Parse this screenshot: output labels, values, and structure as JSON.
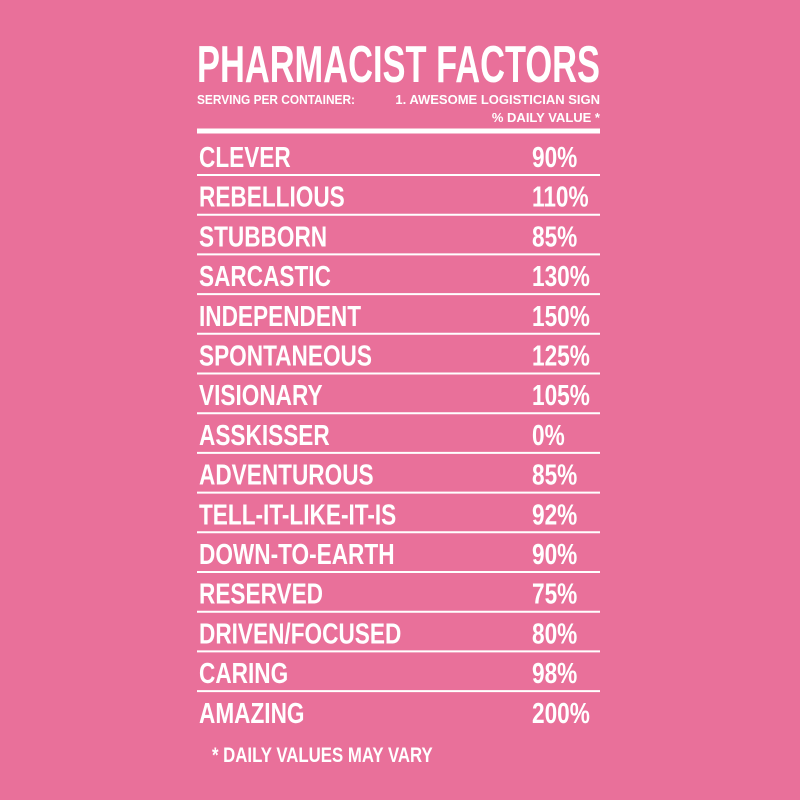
{
  "title": "PHARMACIST FACTORS",
  "serving_label": "SERVING PER CONTAINER:",
  "serving_value": "1. AWESOME LOGISTICIAN SIGN",
  "daily_value_header": "% DAILY VALUE *",
  "rows": [
    [
      "CLEVER",
      "90%"
    ],
    [
      "REBELLIOUS",
      "110%"
    ],
    [
      "STUBBORN",
      "85%"
    ],
    [
      "SARCASTIC",
      "130%"
    ],
    [
      "INDEPENDENT",
      "150%"
    ],
    [
      "SPONTANEOUS",
      "125%"
    ],
    [
      "VISIONARY",
      "105%"
    ],
    [
      "ASSKISSER",
      "0%"
    ],
    [
      "ADVENTUROUS",
      "85%"
    ],
    [
      "TELL-IT-LIKE-IT-IS",
      "92%"
    ],
    [
      "DOWN-TO-EARTH",
      "90%"
    ],
    [
      "RESERVED",
      "75%"
    ],
    [
      "DRIVEN/FOCUSED",
      "80%"
    ],
    [
      "CARING",
      "98%"
    ],
    [
      "AMAZING",
      "200%"
    ]
  ],
  "footnote": "* DAILY VALUES MAY VARY"
}
